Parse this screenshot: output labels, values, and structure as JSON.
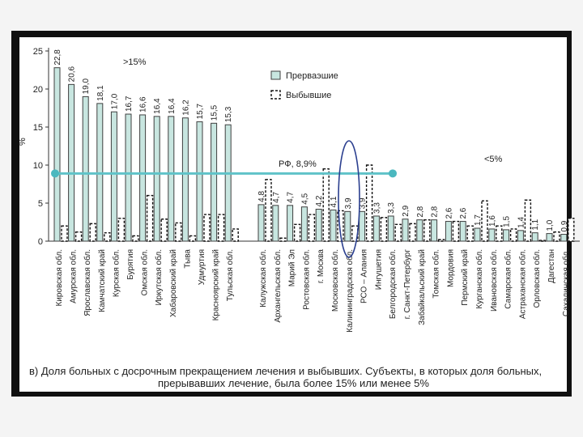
{
  "chart_data": {
    "type": "bar",
    "ylabel": "%",
    "ylim": [
      0,
      25
    ],
    "yticks": [
      "0",
      "5",
      "10",
      "15",
      "20",
      "25"
    ],
    "categories": [
      "Кировская обл.",
      "Амурская обл.",
      "Ярославская обл.",
      "Камчатский край",
      "Курская обл.",
      "Бурятия",
      "Омская обл.",
      "Иркутская обл.",
      "Хабаровский край",
      "Тыва",
      "Удмуртия",
      "Красноярский край",
      "Тульская обл.",
      "Калужская обл.",
      "Архангельская обл.",
      "Марий Эл",
      "Ростовская обл.",
      "г. Москва",
      "Московская обл.",
      "Калининградская обл.",
      "РСО – Алания",
      "Ингушетия",
      "Белгородская обл.",
      "г. Санкт-Петербург",
      "Забайкальский край",
      "Томская обл.",
      "Мордовия",
      "Пермский край",
      "Курганская обл.",
      "Ивановская обл.",
      "Самарская обл.",
      "Астраханская обл.",
      "Орловская обл.",
      "Дагестан",
      "Сахалинская обл."
    ],
    "series": [
      {
        "name": "Прерваэшие",
        "values": [
          22.8,
          20.6,
          19.0,
          18.1,
          17.0,
          16.7,
          16.6,
          16.4,
          16.4,
          16.2,
          15.7,
          15.5,
          15.3,
          4.8,
          4.7,
          4.7,
          4.5,
          4.2,
          4.1,
          3.9,
          3.9,
          3.3,
          3.3,
          2.9,
          2.8,
          2.8,
          2.6,
          2.6,
          1.7,
          1.6,
          1.5,
          1.4,
          1.1,
          1.0,
          0.9
        ]
      },
      {
        "name": "Выбывшие",
        "values": [
          2.0,
          1.2,
          2.3,
          1.1,
          3.0,
          0.7,
          6.0,
          2.9,
          2.4,
          0.7,
          3.5,
          3.5,
          1.6,
          8.1,
          0.4,
          2.2,
          3.5,
          9.5,
          4.0,
          2.0,
          10.0,
          3.1,
          2.2,
          2.3,
          2.8,
          0.2,
          2.6,
          2.0,
          5.3,
          2.0,
          1.6,
          5.4,
          0.1,
          1.2,
          3.0
        ]
      }
    ],
    "value_labels": [
      "22,8",
      "20,6",
      "19,0",
      "18,1",
      "17,0",
      "16,7",
      "16,6",
      "16,4",
      "16,4",
      "16,2",
      "15,7",
      "15,5",
      "15,3",
      "4,8",
      "4,7",
      "4,7",
      "4,5",
      "4,2",
      "4,1",
      "3,9",
      "3,9",
      "3,3",
      "3,3",
      "2,9",
      "2,8",
      "2,8",
      "2,6",
      "2,6",
      "1,7",
      "1,6",
      "1,5",
      "1,4",
      "1,1",
      "1,0",
      "0,9"
    ],
    "reference_line": {
      "label": "РФ, 8,9%",
      "value": 8.9
    },
    "annotations": [
      ">15%",
      "<5%"
    ]
  },
  "caption": {
    "line1": "в) Доля больных с досрочным прекращением лечения и выбывших. Субъекты, в которых доля больных,",
    "line2": "прерывавших лечение, была более 15% или менее 5%"
  },
  "colors": {
    "bar_fill": "#c8e6e0",
    "bar_stroke": "#3f3f3f",
    "ref_line": "#5fc3c8",
    "ref_marker": "#4bb8bf",
    "ellipse": "#2b3f8f"
  }
}
